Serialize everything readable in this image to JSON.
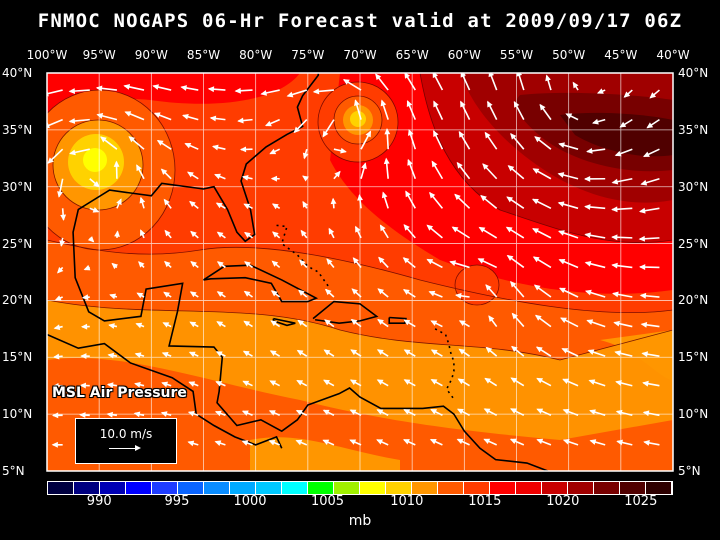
{
  "title": "FNMOC NOGAPS 06-Hr Forecast valid at 2009/09/17 06Z",
  "lon_labels": [
    "100°W",
    "95°W",
    "90°W",
    "85°W",
    "80°W",
    "75°W",
    "70°W",
    "65°W",
    "60°W",
    "55°W",
    "50°W",
    "45°W",
    "40°W"
  ],
  "lat_labels": [
    "40°N",
    "35°N",
    "30°N",
    "25°N",
    "20°N",
    "15°N",
    "10°N",
    "5°N"
  ],
  "field_label": "MSL Air Pressure",
  "reference_vector": "10.0 m/s",
  "colorbar": {
    "labels": [
      "990",
      "995",
      "1000",
      "1005",
      "1010",
      "1015",
      "1020",
      "1025"
    ],
    "unit": "mb",
    "colors": [
      "#000040",
      "#000080",
      "#0000b4",
      "#0000ff",
      "#1e3cff",
      "#0a64ff",
      "#0a8cff",
      "#00aaff",
      "#00c8ff",
      "#00ffff",
      "#00ff00",
      "#a0f000",
      "#ffff00",
      "#ffd200",
      "#ff9600",
      "#ff5a00",
      "#ff3c00",
      "#ff0000",
      "#f00000",
      "#c80000",
      "#a00000",
      "#780000",
      "#500000",
      "#2d0000"
    ]
  },
  "features": {
    "high_pressure_center": "northeast Atlantic, ~1025 mb",
    "low_centers": [
      "Gulf of Mexico ~30-33N 95W",
      "Atlantic ~36N 71W"
    ]
  }
}
